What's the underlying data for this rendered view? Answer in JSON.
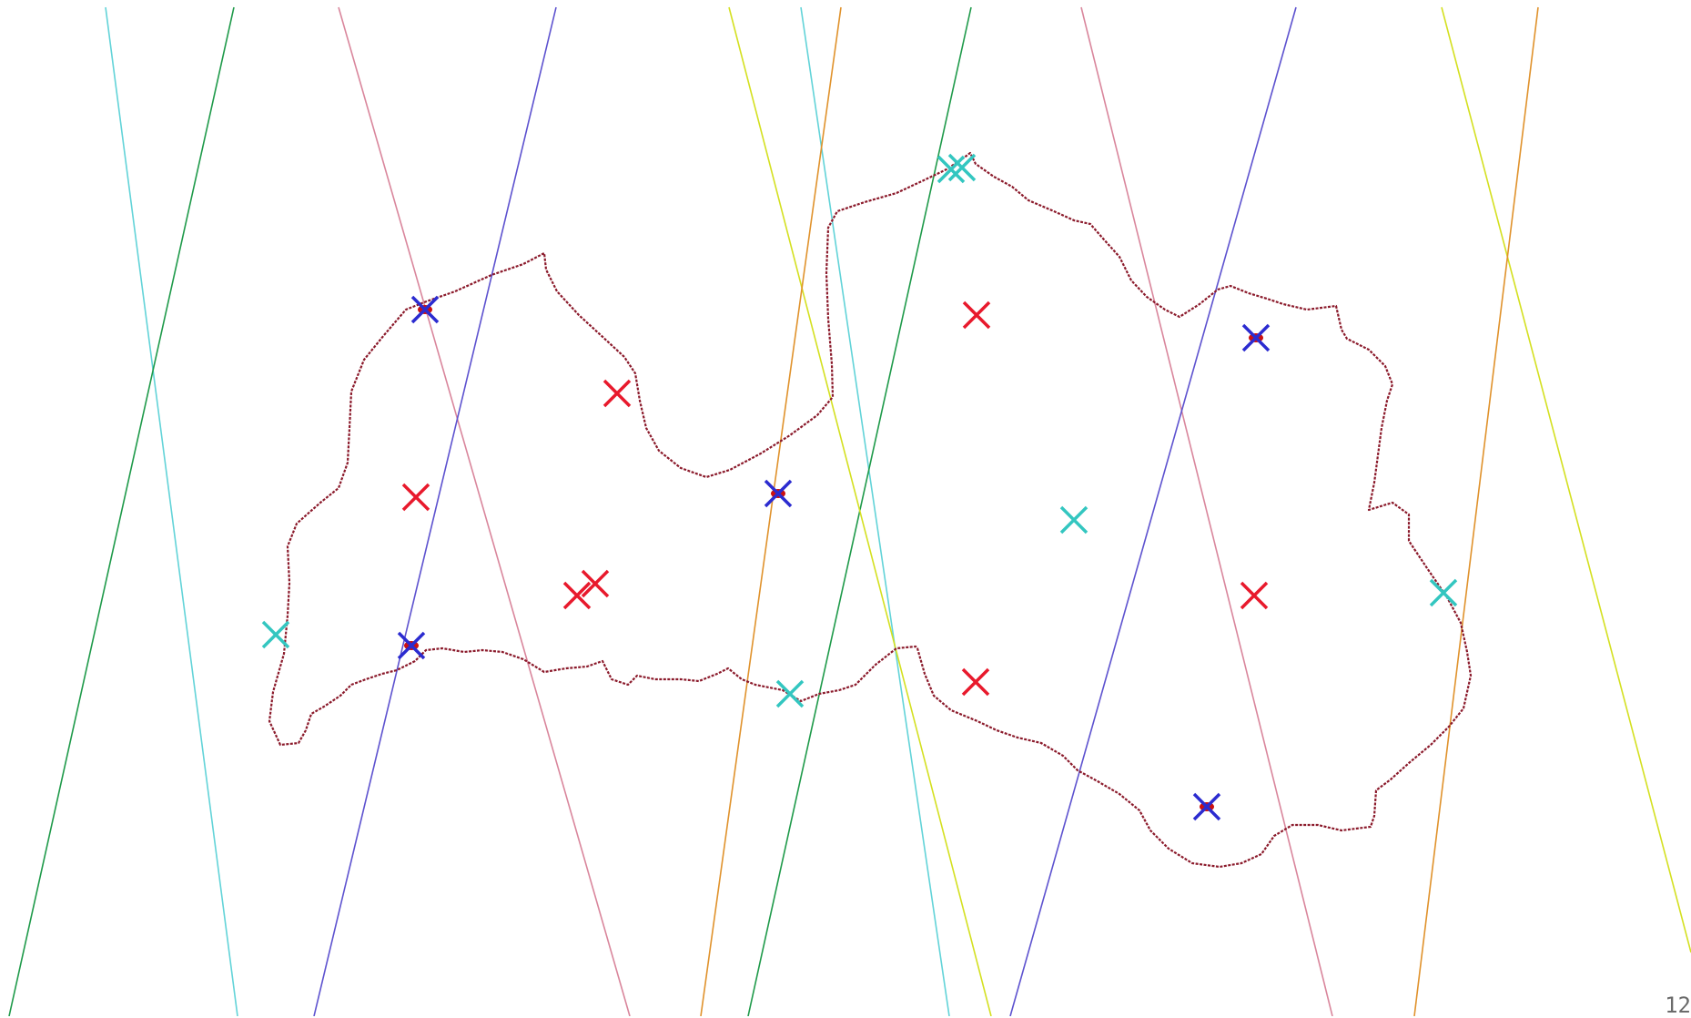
{
  "page_number": "12",
  "colors": {
    "boundary": "#8b1a2b",
    "marker_red": "#e8192c",
    "marker_blue": "#2b2bd0",
    "marker_cyan": "#33c6c0",
    "dot_red": "#cc1010"
  },
  "line_colors": [
    "cyan",
    "green",
    "pink",
    "blue",
    "yellow",
    "orange"
  ],
  "markers": {
    "red": 7,
    "blue_with_red_dot": 5,
    "cyan": 6
  }
}
